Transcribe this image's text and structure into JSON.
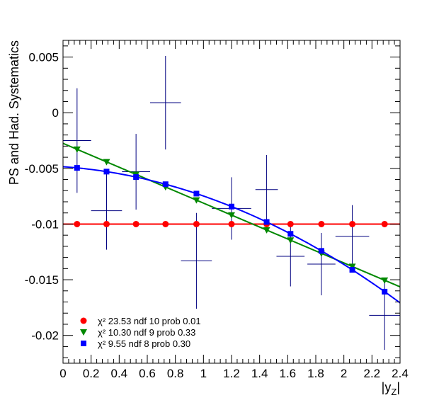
{
  "chart_data": {
    "type": "scatter",
    "xlabel": "|y_Z|",
    "ylabel": "PS and Had. Systematics",
    "xlim": [
      0,
      2.4
    ],
    "ylim": [
      -0.0225,
      0.0065
    ],
    "x_ticks": [
      0,
      0.2,
      0.4,
      0.6,
      0.8,
      1,
      1.2,
      1.4,
      1.6,
      1.8,
      2,
      2.2,
      2.4
    ],
    "x_tick_labels": [
      "0",
      "0.2",
      "0.4",
      "0.6",
      "0.8",
      "1",
      "1.2",
      "1.4",
      "1.6",
      "1.8",
      "2",
      "2.2",
      "2.4"
    ],
    "y_ticks": [
      -0.02,
      -0.015,
      -0.01,
      -0.005,
      0,
      0.005
    ],
    "y_tick_labels": [
      "-0.02",
      "-0.015",
      "-0.01",
      "-0.005",
      "0",
      "0.005"
    ],
    "grid": false,
    "legend_position": "bottom-left",
    "data": {
      "color": "#000080",
      "points": [
        {
          "x": 0.1,
          "xerr": 0.1,
          "y": -0.0025,
          "yerr": 0.0047
        },
        {
          "x": 0.31,
          "xerr": 0.11,
          "y": -0.0088,
          "yerr": 0.0035
        },
        {
          "x": 0.52,
          "xerr": 0.1,
          "y": -0.0053,
          "yerr": 0.0034
        },
        {
          "x": 0.73,
          "xerr": 0.11,
          "y": 0.0009,
          "yerr": 0.0042
        },
        {
          "x": 0.95,
          "xerr": 0.11,
          "y": -0.0133,
          "yerr": 0.0043
        },
        {
          "x": 1.2,
          "xerr": 0.14,
          "y": -0.0086,
          "yerr": 0.0028
        },
        {
          "x": 1.45,
          "xerr": 0.08,
          "y": -0.0069,
          "yerr": 0.0031
        },
        {
          "x": 1.62,
          "xerr": 0.1,
          "y": -0.0129,
          "yerr": 0.0027
        },
        {
          "x": 1.84,
          "xerr": 0.1,
          "y": -0.0136,
          "yerr": 0.0028
        },
        {
          "x": 2.06,
          "xerr": 0.12,
          "y": -0.0111,
          "yerr": 0.0028
        },
        {
          "x": 2.29,
          "xerr": 0.11,
          "y": -0.0182,
          "yerr": 0.0031
        }
      ]
    },
    "series": [
      {
        "fit": "constant",
        "color": "#ff0000",
        "marker": "circle",
        "legend": "χ² 23.53 ndf 10 prob 0.01",
        "coef": [
          -0.01
        ],
        "markers_x": [
          0.1,
          0.31,
          0.52,
          0.73,
          0.95,
          1.2,
          1.45,
          1.62,
          1.84,
          2.06,
          2.29
        ]
      },
      {
        "fit": "linear",
        "color": "#008800",
        "marker": "triangle-down",
        "legend": "χ² 10.30 ndf 9 prob 0.33",
        "coef": [
          -0.00275,
          -0.00537
        ],
        "markers_x": [
          0.1,
          0.31,
          0.52,
          0.73,
          0.95,
          1.2,
          1.45,
          1.62,
          1.84,
          2.06,
          2.29
        ]
      },
      {
        "fit": "quadratic",
        "color": "#0000ff",
        "marker": "square",
        "legend": "χ² 9.55 ndf 8 prob 0.30",
        "coef": [
          -0.00485,
          -0.00087,
          -0.00176
        ],
        "markers_x": [
          0.1,
          0.31,
          0.52,
          0.73,
          0.95,
          1.2,
          1.45,
          1.62,
          1.84,
          2.06,
          2.29
        ]
      }
    ]
  }
}
